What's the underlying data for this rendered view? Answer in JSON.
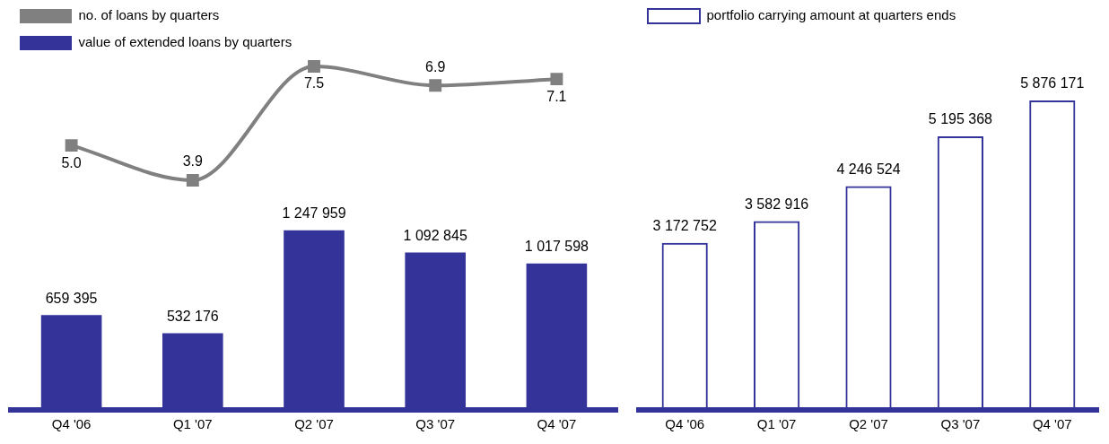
{
  "chart_data": [
    {
      "type": "line",
      "categories": [
        null,
        null,
        null,
        null,
        null
      ],
      "legend": "top left",
      "grid": false,
      "tick_labels": false,
      "marker": "square",
      "series": [
        {
          "name": "no. of loans by quarters",
          "color": "#808080",
          "values": [
            5.0,
            3.9,
            7.5,
            6.9,
            7.1
          ],
          "value_labels": [
            "5.0",
            "3.9",
            "7.5",
            "6.9",
            "7.1"
          ]
        }
      ]
    },
    {
      "type": "bar",
      "categories": [
        "Q4 '06",
        "Q1 '07",
        "Q2 '07",
        "Q3 '07",
        "Q4 '07"
      ],
      "legend": "top left",
      "grid": false,
      "tick_labels": "x",
      "series": [
        {
          "name": "value of extended loans by quarters",
          "color": "#333399",
          "values": [
            659395,
            532176,
            1247959,
            1092845,
            1017598
          ],
          "value_labels": [
            "659 395",
            "532 176",
            "1 247 959",
            "1 092 845",
            "1 017 598"
          ]
        }
      ]
    },
    {
      "type": "bar",
      "categories": [
        "Q4 '06",
        "Q1 '07",
        "Q2 '07",
        "Q3 '07",
        "Q4 '07"
      ],
      "legend": "top left",
      "grid": false,
      "tick_labels": "x",
      "series": [
        {
          "name": "portfolio carrying amount at quarters ends",
          "color": "#333399",
          "values": [
            3172752,
            3582916,
            4246524,
            5195368,
            5876171
          ],
          "value_labels": [
            "3 172 752",
            "3 582 916",
            "4 246 524",
            "5 195 368",
            "5 876 171"
          ]
        }
      ]
    }
  ]
}
